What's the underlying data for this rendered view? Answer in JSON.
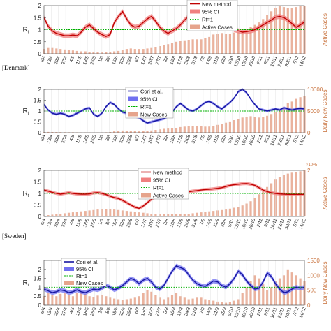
{
  "labels": {
    "denmark": "[Denmark]",
    "sweden": "[Sweden]"
  },
  "colors": {
    "bars": "#e6a48c",
    "new_method": "#c00000",
    "new_method_ci": "#f08080",
    "cori": "#1515a0",
    "cori_ci": "#7070f0",
    "rt1": "#00b000",
    "right_axis": "#c8703a"
  },
  "chart_data": [
    {
      "type": "line",
      "title": "",
      "ylabel": "R_t",
      "y2label": "Active Cases",
      "ylim": [
        0,
        2
      ],
      "y_ticks": [
        "0",
        "0.5",
        "1",
        "1.5",
        "2"
      ],
      "y2_ticks": [],
      "x_tick_labels": [
        "6/4",
        "13/4",
        "20/4",
        "27/4",
        "4/5",
        "11/5",
        "18/5",
        "25/5",
        "1/6",
        "8/6",
        "15/6",
        "22/6",
        "29/6",
        "6/7",
        "13/7",
        "20/7",
        "27/7",
        "3/8",
        "10/8",
        "17/8",
        "24/8",
        "31/8",
        "7/9",
        "14/9",
        "21/9",
        "28/9",
        "5/10",
        "12/10",
        "19/10",
        "26/10",
        "2/11",
        "9/11",
        "16/11",
        "23/11",
        "30/11",
        "7/12",
        "14/12"
      ],
      "legend": [
        "New method",
        "95% CI",
        "Rt=1",
        "Active Cases"
      ],
      "legend_position": "top-right",
      "x": [
        0,
        4,
        8,
        12,
        16,
        20,
        24,
        28,
        32,
        36,
        40,
        44,
        48,
        52,
        56,
        60,
        64,
        68,
        72,
        76,
        80,
        84,
        88,
        92,
        96,
        100,
        104,
        108,
        112,
        116,
        120,
        124,
        128,
        132,
        136,
        140,
        144,
        148,
        152,
        156,
        160,
        164,
        168,
        172,
        176,
        180,
        184,
        188,
        192,
        196,
        200,
        204,
        208,
        212,
        216,
        220,
        224,
        228,
        232,
        236,
        240,
        244,
        248,
        252
      ],
      "series": [
        {
          "name": "New method",
          "values": [
            1.5,
            1.15,
            0.95,
            0.85,
            0.8,
            0.75,
            0.75,
            0.78,
            0.75,
            0.9,
            1.1,
            1.2,
            1.05,
            0.9,
            0.8,
            0.72,
            0.8,
            1.3,
            1.55,
            1.75,
            1.45,
            1.2,
            1.1,
            1.15,
            1.3,
            1.45,
            1.55,
            1.35,
            1.1,
            0.95,
            0.85,
            0.95,
            1.05,
            1.2,
            1.4,
            1.55,
            1.55,
            1.4,
            1.3,
            1.45,
            1.65,
            1.85,
            1.8,
            1.6,
            1.4,
            1.15,
            1.0,
            0.95,
            0.9,
            0.92,
            0.95,
            1.0,
            1.1,
            1.2,
            1.3,
            1.4,
            1.52,
            1.55,
            1.5,
            1.4,
            1.25,
            1.1,
            1.2,
            1.32
          ],
          "ci": 0.1
        },
        {
          "name": "Active Cases",
          "values": [
            0.1,
            0.12,
            0.12,
            0.11,
            0.1,
            0.09,
            0.08,
            0.07,
            0.06,
            0.05,
            0.05,
            0.04,
            0.04,
            0.04,
            0.04,
            0.04,
            0.04,
            0.05,
            0.06,
            0.08,
            0.1,
            0.11,
            0.1,
            0.1,
            0.1,
            0.11,
            0.12,
            0.14,
            0.16,
            0.18,
            0.2,
            0.22,
            0.25,
            0.27,
            0.28,
            0.29,
            0.3,
            0.3,
            0.3,
            0.32,
            0.35,
            0.4,
            0.42,
            0.43,
            0.42,
            0.42,
            0.44,
            0.46,
            0.48,
            0.5,
            0.55,
            0.6,
            0.65,
            0.72,
            0.8,
            0.88,
            0.95,
            1.0,
            0.97,
            0.95,
            0.95,
            0.97,
            1.0,
            1.0
          ],
          "axis": "right"
        }
      ]
    },
    {
      "type": "line",
      "title": "",
      "ylabel": "R_t",
      "y2label": "Daily New Cases",
      "ylim": [
        0,
        2
      ],
      "y2lim": [
        0,
        10000
      ],
      "y_ticks": [
        "0",
        "0.5",
        "1",
        "1.5",
        "2"
      ],
      "y2_ticks": [
        "0",
        "5000",
        "10000"
      ],
      "x_tick_labels": [
        "6/4",
        "13/4",
        "20/4",
        "27/4",
        "4/5",
        "11/5",
        "18/5",
        "25/5",
        "1/6",
        "8/6",
        "15/6",
        "22/6",
        "29/6",
        "6/7",
        "13/7",
        "20/7",
        "27/7",
        "3/8",
        "10/8",
        "17/8",
        "24/8",
        "31/8",
        "7/9",
        "14/9",
        "21/9",
        "28/9",
        "5/10",
        "12/10",
        "19/10",
        "26/10",
        "2/11",
        "9/11",
        "16/11",
        "23/11",
        "30/11",
        "7/12",
        "14/12"
      ],
      "legend": [
        "Cori et al.",
        "95% CI",
        "Rt=1",
        "New Cases"
      ],
      "legend_position": "top-center",
      "x": [
        0,
        4,
        8,
        12,
        16,
        20,
        24,
        28,
        32,
        36,
        40,
        44,
        48,
        52,
        56,
        60,
        64,
        68,
        72,
        76,
        80,
        84,
        88,
        92,
        96,
        100,
        104,
        108,
        112,
        116,
        120,
        124,
        128,
        132,
        136,
        140,
        144,
        148,
        152,
        156,
        160,
        164,
        168,
        172,
        176,
        180,
        184,
        188,
        192,
        196,
        200,
        204,
        208,
        212,
        216,
        220,
        224,
        228,
        232,
        236,
        240,
        244,
        248,
        252
      ],
      "series": [
        {
          "name": "Cori et al.",
          "values": [
            1.3,
            1.05,
            0.9,
            0.85,
            0.9,
            0.85,
            0.75,
            0.8,
            0.9,
            1.0,
            1.1,
            1.15,
            0.85,
            0.75,
            0.9,
            1.2,
            1.4,
            1.3,
            1.1,
            0.95,
            0.9,
            0.82,
            0.75,
            0.7,
            0.55,
            0.45,
            0.5,
            0.55,
            0.6,
            0.65,
            0.75,
            0.95,
            1.2,
            1.35,
            1.2,
            1.05,
            1.0,
            1.1,
            1.25,
            1.4,
            1.45,
            1.35,
            1.2,
            1.1,
            1.25,
            1.4,
            1.6,
            1.9,
            2.0,
            1.85,
            1.55,
            1.3,
            1.1,
            1.05,
            1.0,
            1.05,
            1.1,
            1.05,
            1.15,
            1.1,
            1.05,
            1.1,
            1.12,
            1.1
          ],
          "ci": 0.06
        },
        {
          "name": "New Cases",
          "values": [
            150,
            180,
            160,
            140,
            130,
            110,
            100,
            90,
            80,
            70,
            60,
            50,
            40,
            50,
            70,
            100,
            160,
            300,
            420,
            500,
            450,
            380,
            330,
            300,
            330,
            420,
            520,
            640,
            780,
            880,
            950,
            1000,
            1100,
            1300,
            1400,
            1500,
            1550,
            1500,
            1450,
            1400,
            1420,
            1600,
            1800,
            2000,
            2300,
            2600,
            2900,
            3200,
            3500,
            3700,
            3800,
            3600,
            3500,
            3600,
            3900,
            4300,
            4800,
            5200,
            6000,
            6800,
            7200,
            7800,
            8200,
            8400
          ],
          "axis": "right"
        }
      ]
    },
    {
      "type": "line",
      "title": "",
      "ylabel": "R_t",
      "y2label": "Active Cases",
      "ylim": [
        0,
        2
      ],
      "y2_multiplier": "×10^5",
      "y_ticks": [
        "0",
        "0.5",
        "1",
        "1.5",
        "2"
      ],
      "y2_ticks": [
        "2"
      ],
      "x_tick_labels": [
        "6/4",
        "13/4",
        "20/4",
        "27/4",
        "4/5",
        "11/5",
        "18/5",
        "25/5",
        "1/6",
        "8/6",
        "15/6",
        "22/6",
        "29/6",
        "6/7",
        "13/7",
        "20/7",
        "27/7",
        "3/8",
        "10/8",
        "17/8",
        "24/8",
        "31/8",
        "7/9",
        "14/9",
        "21/9",
        "28/9",
        "5/10",
        "12/10",
        "19/10",
        "26/10",
        "2/11",
        "9/11",
        "16/11",
        "23/11",
        "30/11",
        "7/12",
        "14/12"
      ],
      "legend": [
        "New method",
        "95% CI",
        "Rt=1",
        "Active Cases"
      ],
      "legend_position": "top-center",
      "x": [
        0,
        4,
        8,
        12,
        16,
        20,
        24,
        28,
        32,
        36,
        40,
        44,
        48,
        52,
        56,
        60,
        64,
        68,
        72,
        76,
        80,
        84,
        88,
        92,
        96,
        100,
        104,
        108,
        112,
        116,
        120,
        124,
        128,
        132,
        136,
        140,
        144,
        148,
        152,
        156,
        160,
        164,
        168,
        172,
        176,
        180,
        184,
        188,
        192,
        196,
        200,
        204,
        208,
        212,
        216,
        220,
        224,
        228,
        232,
        236,
        240,
        244,
        248,
        252
      ],
      "series": [
        {
          "name": "New method",
          "values": [
            1.15,
            1.1,
            1.05,
            1.0,
            0.97,
            1.0,
            1.03,
            1.0,
            0.98,
            0.97,
            0.97,
            0.98,
            1.02,
            1.04,
            1.0,
            0.95,
            0.88,
            0.82,
            0.78,
            0.7,
            0.6,
            0.5,
            0.4,
            0.35,
            0.45,
            0.6,
            0.75,
            0.85,
            0.9,
            0.92,
            0.95,
            1.0,
            1.0,
            1.02,
            1.05,
            1.07,
            1.1,
            1.12,
            1.15,
            1.17,
            1.18,
            1.2,
            1.22,
            1.25,
            1.3,
            1.35,
            1.38,
            1.4,
            1.42,
            1.43,
            1.4,
            1.35,
            1.25,
            1.15,
            1.08,
            1.03,
            1.0,
            0.98,
            0.97,
            0.96,
            0.96,
            0.96,
            0.96,
            0.96
          ],
          "ci": 0.07
        },
        {
          "name": "Active Cases",
          "values": [
            0.02,
            0.03,
            0.04,
            0.05,
            0.06,
            0.07,
            0.08,
            0.09,
            0.1,
            0.11,
            0.12,
            0.13,
            0.14,
            0.15,
            0.16,
            0.16,
            0.16,
            0.15,
            0.14,
            0.13,
            0.12,
            0.11,
            0.1,
            0.09,
            0.08,
            0.07,
            0.06,
            0.055,
            0.05,
            0.05,
            0.05,
            0.05,
            0.05,
            0.05,
            0.055,
            0.06,
            0.07,
            0.08,
            0.09,
            0.1,
            0.11,
            0.12,
            0.13,
            0.14,
            0.15,
            0.17,
            0.19,
            0.21,
            0.24,
            0.28,
            0.33,
            0.4,
            0.48,
            0.56,
            0.64,
            0.72,
            0.8,
            0.86,
            0.9,
            0.93,
            0.95,
            0.97,
            0.98,
            1.0
          ],
          "axis": "right"
        }
      ]
    },
    {
      "type": "line",
      "title": "",
      "ylabel": "R_t",
      "y2label": "Daily New Cases",
      "ylim": [
        0,
        2.5
      ],
      "y2lim": [
        0,
        1500
      ],
      "y_ticks": [
        "0",
        "0.5",
        "1",
        "1.5",
        "2"
      ],
      "y2_ticks": [
        "0",
        "500",
        "1000",
        "1500"
      ],
      "x_tick_labels": [
        "6/4",
        "13/4",
        "20/4",
        "27/4",
        "4/5",
        "11/5",
        "18/5",
        "25/5",
        "1/6",
        "8/6",
        "15/6",
        "22/6",
        "29/6",
        "6/7",
        "13/7",
        "20/7",
        "27/7",
        "3/8",
        "10/8",
        "17/8",
        "24/8",
        "31/8",
        "7/9",
        "14/9",
        "21/9",
        "28/9",
        "5/10",
        "12/10",
        "19/10",
        "26/10",
        "2/11",
        "9/11",
        "16/11",
        "23/11",
        "30/11",
        "7/12",
        "14/12"
      ],
      "legend": [
        "Cori et al.",
        "95% CI",
        "Rt=1",
        "New Cases"
      ],
      "legend_position": "top-left",
      "x": [
        0,
        4,
        8,
        12,
        16,
        20,
        24,
        28,
        32,
        36,
        40,
        44,
        48,
        52,
        56,
        60,
        64,
        68,
        72,
        76,
        80,
        84,
        88,
        92,
        96,
        100,
        104,
        108,
        112,
        116,
        120,
        124,
        128,
        132,
        136,
        140,
        144,
        148,
        152,
        156,
        160,
        164,
        168,
        172,
        176,
        180,
        184,
        188,
        192,
        196,
        200,
        204,
        208,
        212,
        216,
        220,
        224,
        228,
        232,
        236,
        240,
        244,
        248,
        252
      ],
      "series": [
        {
          "name": "Cori et al.",
          "values": [
            0.9,
            0.8,
            0.7,
            0.75,
            0.85,
            0.8,
            0.7,
            0.75,
            0.85,
            0.75,
            0.7,
            0.8,
            0.9,
            0.85,
            0.95,
            1.1,
            1.0,
            0.85,
            0.95,
            1.1,
            1.3,
            1.5,
            1.4,
            1.2,
            1.4,
            1.5,
            1.3,
            1.0,
            0.9,
            1.1,
            1.5,
            1.9,
            2.2,
            2.1,
            2.0,
            1.7,
            1.4,
            1.2,
            1.1,
            1.05,
            1.2,
            1.35,
            1.3,
            1.1,
            1.0,
            1.2,
            1.5,
            1.9,
            1.7,
            1.35,
            1.1,
            0.9,
            0.95,
            1.3,
            1.8,
            1.6,
            1.2,
            0.9,
            0.7,
            0.75,
            0.9,
            1.0,
            0.95,
            1.0
          ],
          "ci": 0.12
        },
        {
          "name": "New Cases",
          "values": [
            300,
            400,
            350,
            300,
            380,
            420,
            350,
            300,
            400,
            450,
            380,
            300,
            280,
            320,
            350,
            300,
            250,
            220,
            200,
            180,
            200,
            220,
            250,
            300,
            400,
            500,
            450,
            350,
            250,
            200,
            250,
            350,
            400,
            300,
            250,
            200,
            220,
            250,
            250,
            200,
            180,
            150,
            120,
            100,
            80,
            100,
            150,
            200,
            400,
            600,
            800,
            1000,
            900,
            700,
            500,
            600,
            800,
            900,
            1000,
            1200,
            1100,
            1000,
            900,
            800
          ],
          "axis": "right"
        }
      ]
    }
  ]
}
